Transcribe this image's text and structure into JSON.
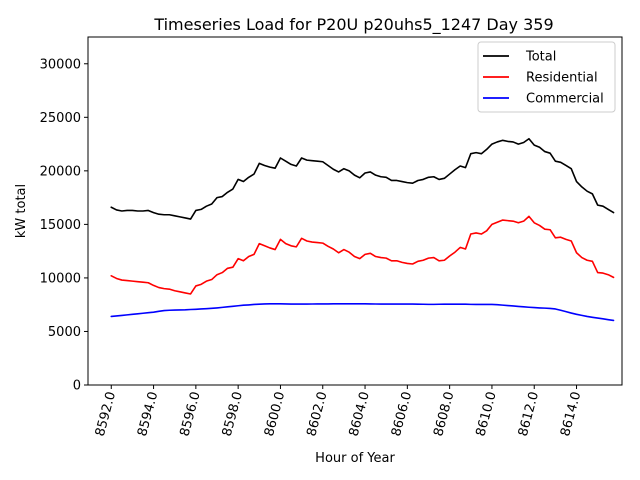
{
  "chart_data": {
    "type": "line",
    "title": "Timeseries Load for P20U p20uhs5_1247  Day 359",
    "xlabel": "Hour of Year",
    "ylabel": "kW total",
    "xlim": [
      8590.9,
      8616.15
    ],
    "ylim": [
      0,
      32500
    ],
    "x_ticks": [
      8592,
      8594,
      8596,
      8598,
      8600,
      8602,
      8604,
      8606,
      8608,
      8610,
      8612,
      8614
    ],
    "x_tick_labels": [
      "8592.0",
      "8594.0",
      "8596.0",
      "8598.0",
      "8600.0",
      "8602.0",
      "8604.0",
      "8606.0",
      "8608.0",
      "8610.0",
      "8612.0",
      "8614.0"
    ],
    "y_ticks": [
      0,
      5000,
      10000,
      15000,
      20000,
      25000,
      30000
    ],
    "y_tick_labels": [
      "0",
      "5000",
      "10000",
      "15000",
      "20000",
      "25000",
      "30000"
    ],
    "legend_position": "upper-right",
    "x": [
      8592.0,
      8592.25,
      8592.5,
      8592.75,
      8593.0,
      8593.25,
      8593.5,
      8593.75,
      8594.0,
      8594.25,
      8594.5,
      8594.75,
      8595.0,
      8595.25,
      8595.5,
      8595.75,
      8596.0,
      8596.25,
      8596.5,
      8596.75,
      8597.0,
      8597.25,
      8597.5,
      8597.75,
      8598.0,
      8598.25,
      8598.5,
      8598.75,
      8599.0,
      8599.25,
      8599.5,
      8599.75,
      8600.0,
      8600.25,
      8600.5,
      8600.75,
      8601.0,
      8601.25,
      8601.5,
      8601.75,
      8602.0,
      8602.25,
      8602.5,
      8602.75,
      8603.0,
      8603.25,
      8603.5,
      8603.75,
      8604.0,
      8604.25,
      8604.5,
      8604.75,
      8605.0,
      8605.25,
      8605.5,
      8605.75,
      8606.0,
      8606.25,
      8606.5,
      8606.75,
      8607.0,
      8607.25,
      8607.5,
      8607.75,
      8608.0,
      8608.25,
      8608.5,
      8608.75,
      8609.0,
      8609.25,
      8609.5,
      8609.75,
      8610.0,
      8610.25,
      8610.5,
      8610.75,
      8611.0,
      8611.25,
      8611.5,
      8611.75,
      8612.0,
      8612.25,
      8612.5,
      8612.75,
      8613.0,
      8613.25,
      8613.5,
      8613.75,
      8614.0,
      8614.25,
      8614.5,
      8614.75,
      8615.0,
      8615.25,
      8615.5,
      8615.75
    ],
    "series": [
      {
        "name": "Total",
        "color": "#000000",
        "values": [
          16600,
          16350,
          16250,
          16300,
          16300,
          16250,
          16250,
          16300,
          16100,
          15950,
          15900,
          15900,
          15800,
          15700,
          15600,
          15500,
          16300,
          16400,
          16700,
          16900,
          17500,
          17600,
          18000,
          18300,
          19200,
          19000,
          19400,
          19700,
          20700,
          20500,
          20350,
          20250,
          21200,
          20900,
          20600,
          20450,
          21200,
          21000,
          20950,
          20900,
          20850,
          20500,
          20150,
          19900,
          20200,
          20000,
          19600,
          19350,
          19800,
          19900,
          19600,
          19450,
          19400,
          19100,
          19100,
          19000,
          18900,
          18850,
          19100,
          19200,
          19400,
          19450,
          19200,
          19300,
          19700,
          20100,
          20450,
          20300,
          21600,
          21700,
          21600,
          22000,
          22500,
          22700,
          22850,
          22750,
          22700,
          22500,
          22650,
          23000,
          22400,
          22200,
          21800,
          21650,
          20900,
          20800,
          20500,
          20200,
          19000,
          18500,
          18100,
          17850,
          16800,
          16700,
          16400,
          16100
        ]
      },
      {
        "name": "Residential",
        "color": "#ff0000",
        "values": [
          10200,
          9950,
          9800,
          9750,
          9700,
          9650,
          9600,
          9550,
          9300,
          9100,
          9000,
          8950,
          8800,
          8700,
          8600,
          8500,
          9250,
          9400,
          9700,
          9850,
          10300,
          10500,
          10900,
          11000,
          11800,
          11600,
          12000,
          12200,
          13200,
          13000,
          12800,
          12650,
          13600,
          13200,
          13000,
          12900,
          13700,
          13450,
          13350,
          13300,
          13250,
          12950,
          12700,
          12350,
          12650,
          12400,
          12000,
          11800,
          12200,
          12300,
          12000,
          11900,
          11850,
          11600,
          11600,
          11450,
          11350,
          11300,
          11550,
          11650,
          11850,
          11900,
          11600,
          11650,
          12050,
          12400,
          12850,
          12700,
          14100,
          14200,
          14100,
          14400,
          15000,
          15200,
          15400,
          15350,
          15300,
          15150,
          15300,
          15750,
          15150,
          14900,
          14550,
          14500,
          13750,
          13800,
          13600,
          13450,
          12350,
          11900,
          11650,
          11550,
          10500,
          10450,
          10300,
          10050
        ]
      },
      {
        "name": "Commercial",
        "color": "#0000ff",
        "values": [
          6400,
          6450,
          6500,
          6550,
          6600,
          6650,
          6700,
          6750,
          6800,
          6880,
          6950,
          6980,
          7000,
          7010,
          7020,
          7050,
          7070,
          7100,
          7130,
          7160,
          7200,
          7250,
          7300,
          7350,
          7400,
          7450,
          7480,
          7520,
          7550,
          7570,
          7580,
          7580,
          7580,
          7570,
          7560,
          7560,
          7560,
          7560,
          7565,
          7570,
          7570,
          7575,
          7580,
          7580,
          7580,
          7580,
          7580,
          7580,
          7580,
          7570,
          7565,
          7560,
          7560,
          7560,
          7560,
          7560,
          7560,
          7555,
          7550,
          7540,
          7530,
          7530,
          7540,
          7545,
          7550,
          7550,
          7550,
          7550,
          7530,
          7520,
          7520,
          7520,
          7520,
          7500,
          7460,
          7420,
          7380,
          7340,
          7300,
          7260,
          7230,
          7200,
          7180,
          7150,
          7100,
          6980,
          6850,
          6720,
          6600,
          6500,
          6400,
          6320,
          6250,
          6180,
          6100,
          6030
        ]
      }
    ]
  }
}
